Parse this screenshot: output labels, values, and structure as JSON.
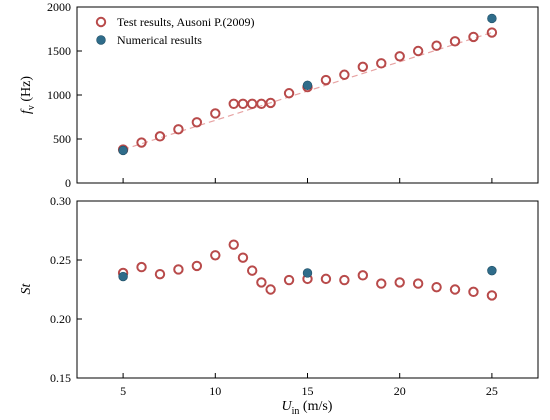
{
  "chart_data": [
    {
      "type": "scatter",
      "ylabel_main": "f",
      "ylabel_sub": "v",
      "ylabel_unit": " (Hz)",
      "xlim": [
        2.5,
        27.5
      ],
      "ylim": [
        0,
        2000
      ],
      "xticks": [
        5,
        10,
        15,
        20,
        25
      ],
      "yticks": [
        0,
        500,
        1000,
        1500,
        2000
      ],
      "ytick_labels": [
        "0",
        "500",
        "1000",
        "1500",
        "2000"
      ],
      "legend": {
        "position": "top-left",
        "entries": [
          "Test results, Ausoni P.(2009)",
          "Numerical results"
        ]
      },
      "trendline": {
        "x": [
          5,
          25
        ],
        "y": [
          380,
          1710
        ]
      },
      "series": [
        {
          "name": "Test results, Ausoni P.(2009)",
          "marker": "hollow-circle",
          "color": "#b84a4a",
          "x": [
            5,
            6,
            7,
            8,
            9,
            10,
            11,
            11.5,
            12,
            12.5,
            13,
            14,
            15,
            16,
            17,
            18,
            19,
            20,
            21,
            22,
            23,
            24,
            25
          ],
          "y": [
            380,
            460,
            530,
            610,
            690,
            790,
            900,
            900,
            900,
            900,
            910,
            1020,
            1090,
            1170,
            1230,
            1320,
            1360,
            1440,
            1500,
            1560,
            1610,
            1660,
            1710
          ]
        },
        {
          "name": "Numerical results",
          "marker": "filled-circle",
          "color": "#2f6c8a",
          "x": [
            5,
            15,
            25
          ],
          "y": [
            370,
            1110,
            1870
          ]
        }
      ]
    },
    {
      "type": "scatter",
      "ylabel": "St",
      "xlabel_main": "U",
      "xlabel_sub": "in",
      "xlabel_unit": " (m/s)",
      "xlim": [
        2.5,
        27.5
      ],
      "ylim": [
        0.15,
        0.3
      ],
      "xticks": [
        5,
        10,
        15,
        20,
        25
      ],
      "xtick_labels": [
        "5",
        "10",
        "15",
        "20",
        "25"
      ],
      "yticks": [
        0.15,
        0.2,
        0.25,
        0.3
      ],
      "ytick_labels": [
        "0.15",
        "0.20",
        "0.25",
        "0.30"
      ],
      "series": [
        {
          "name": "Test results, Ausoni P.(2009)",
          "marker": "hollow-circle",
          "color": "#b84a4a",
          "x": [
            5,
            6,
            7,
            8,
            9,
            10,
            11,
            11.5,
            12,
            12.5,
            13,
            14,
            15,
            16,
            17,
            18,
            19,
            20,
            21,
            22,
            23,
            24,
            25
          ],
          "y": [
            0.239,
            0.244,
            0.238,
            0.242,
            0.245,
            0.254,
            0.263,
            0.252,
            0.241,
            0.231,
            0.225,
            0.233,
            0.234,
            0.234,
            0.233,
            0.237,
            0.23,
            0.231,
            0.23,
            0.227,
            0.225,
            0.223,
            0.22
          ]
        },
        {
          "name": "Numerical results",
          "marker": "filled-circle",
          "color": "#2f6c8a",
          "x": [
            5,
            15,
            25
          ],
          "y": [
            0.236,
            0.239,
            0.241
          ]
        }
      ]
    }
  ]
}
